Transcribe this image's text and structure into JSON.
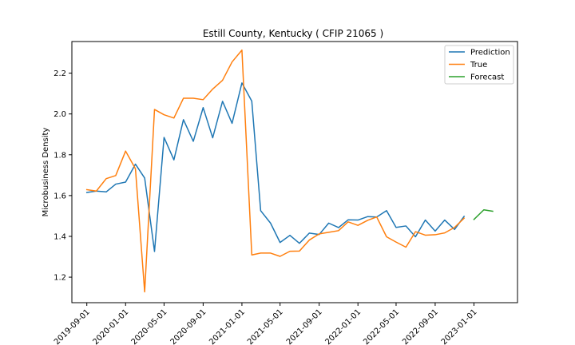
{
  "chart_data": {
    "type": "line",
    "title": "Estill County, Kentucky ( CFIP 21065 )",
    "xlabel": "",
    "ylabel": "Microbusiness Density",
    "xlim": [
      "2019-07-16",
      "2023-05-18"
    ],
    "ylim": [
      1.075,
      2.355
    ],
    "x_ticks": [
      "2019-09-01",
      "2020-01-01",
      "2020-05-01",
      "2020-09-01",
      "2021-01-01",
      "2021-05-01",
      "2021-09-01",
      "2022-01-01",
      "2022-05-01",
      "2022-09-01",
      "2023-01-01"
    ],
    "y_ticks": [
      1.2,
      1.4,
      1.6,
      1.8,
      2.0,
      2.2
    ],
    "grid": false,
    "legend_position": "top-right",
    "series": [
      {
        "name": "Prediction",
        "color": "#1f77b4",
        "points": [
          {
            "x": "2019-09-01",
            "y": 1.615
          },
          {
            "x": "2019-10-01",
            "y": 1.622
          },
          {
            "x": "2019-11-01",
            "y": 1.618
          },
          {
            "x": "2019-12-01",
            "y": 1.656
          },
          {
            "x": "2020-01-01",
            "y": 1.666
          },
          {
            "x": "2020-02-01",
            "y": 1.754
          },
          {
            "x": "2020-03-01",
            "y": 1.686
          },
          {
            "x": "2020-04-01",
            "y": 1.326
          },
          {
            "x": "2020-05-01",
            "y": 1.885
          },
          {
            "x": "2020-06-01",
            "y": 1.775
          },
          {
            "x": "2020-07-01",
            "y": 1.972
          },
          {
            "x": "2020-08-01",
            "y": 1.866
          },
          {
            "x": "2020-09-01",
            "y": 2.031
          },
          {
            "x": "2020-10-01",
            "y": 1.883
          },
          {
            "x": "2020-11-01",
            "y": 2.062
          },
          {
            "x": "2020-12-01",
            "y": 1.954
          },
          {
            "x": "2021-01-01",
            "y": 2.152
          },
          {
            "x": "2021-02-01",
            "y": 2.063
          },
          {
            "x": "2021-03-01",
            "y": 1.526
          },
          {
            "x": "2021-04-01",
            "y": 1.465
          },
          {
            "x": "2021-05-01",
            "y": 1.37
          },
          {
            "x": "2021-06-01",
            "y": 1.405
          },
          {
            "x": "2021-07-01",
            "y": 1.366
          },
          {
            "x": "2021-08-01",
            "y": 1.416
          },
          {
            "x": "2021-09-01",
            "y": 1.409
          },
          {
            "x": "2021-10-01",
            "y": 1.465
          },
          {
            "x": "2021-11-01",
            "y": 1.443
          },
          {
            "x": "2021-12-01",
            "y": 1.481
          },
          {
            "x": "2022-01-01",
            "y": 1.48
          },
          {
            "x": "2022-02-01",
            "y": 1.497
          },
          {
            "x": "2022-03-01",
            "y": 1.495
          },
          {
            "x": "2022-04-01",
            "y": 1.526
          },
          {
            "x": "2022-05-01",
            "y": 1.444
          },
          {
            "x": "2022-06-01",
            "y": 1.451
          },
          {
            "x": "2022-07-01",
            "y": 1.398
          },
          {
            "x": "2022-08-01",
            "y": 1.48
          },
          {
            "x": "2022-09-01",
            "y": 1.426
          },
          {
            "x": "2022-10-01",
            "y": 1.48
          },
          {
            "x": "2022-11-01",
            "y": 1.434
          },
          {
            "x": "2022-12-01",
            "y": 1.498
          }
        ]
      },
      {
        "name": "True",
        "color": "#ff7f0e",
        "points": [
          {
            "x": "2019-09-01",
            "y": 1.629
          },
          {
            "x": "2019-10-01",
            "y": 1.622
          },
          {
            "x": "2019-11-01",
            "y": 1.683
          },
          {
            "x": "2019-12-01",
            "y": 1.698
          },
          {
            "x": "2020-01-01",
            "y": 1.818
          },
          {
            "x": "2020-02-01",
            "y": 1.731
          },
          {
            "x": "2020-03-01",
            "y": 1.128
          },
          {
            "x": "2020-04-01",
            "y": 2.022
          },
          {
            "x": "2020-05-01",
            "y": 1.996
          },
          {
            "x": "2020-06-01",
            "y": 1.98
          },
          {
            "x": "2020-07-01",
            "y": 2.077
          },
          {
            "x": "2020-08-01",
            "y": 2.077
          },
          {
            "x": "2020-09-01",
            "y": 2.07
          },
          {
            "x": "2020-10-01",
            "y": 2.122
          },
          {
            "x": "2020-11-01",
            "y": 2.165
          },
          {
            "x": "2020-12-01",
            "y": 2.255
          },
          {
            "x": "2021-01-01",
            "y": 2.313
          },
          {
            "x": "2021-02-01",
            "y": 1.309
          },
          {
            "x": "2021-03-01",
            "y": 1.318
          },
          {
            "x": "2021-04-01",
            "y": 1.318
          },
          {
            "x": "2021-05-01",
            "y": 1.302
          },
          {
            "x": "2021-06-01",
            "y": 1.327
          },
          {
            "x": "2021-07-01",
            "y": 1.328
          },
          {
            "x": "2021-08-01",
            "y": 1.382
          },
          {
            "x": "2021-09-01",
            "y": 1.412
          },
          {
            "x": "2021-10-01",
            "y": 1.42
          },
          {
            "x": "2021-11-01",
            "y": 1.428
          },
          {
            "x": "2021-12-01",
            "y": 1.471
          },
          {
            "x": "2022-01-01",
            "y": 1.454
          },
          {
            "x": "2022-02-01",
            "y": 1.479
          },
          {
            "x": "2022-03-01",
            "y": 1.495
          },
          {
            "x": "2022-04-01",
            "y": 1.398
          },
          {
            "x": "2022-05-01",
            "y": 1.372
          },
          {
            "x": "2022-06-01",
            "y": 1.347
          },
          {
            "x": "2022-07-01",
            "y": 1.423
          },
          {
            "x": "2022-08-01",
            "y": 1.406
          },
          {
            "x": "2022-09-01",
            "y": 1.408
          },
          {
            "x": "2022-10-01",
            "y": 1.417
          },
          {
            "x": "2022-11-01",
            "y": 1.444
          },
          {
            "x": "2022-12-01",
            "y": 1.489
          }
        ]
      },
      {
        "name": "Forecast",
        "color": "#2ca02c",
        "points": [
          {
            "x": "2023-01-01",
            "y": 1.483
          },
          {
            "x": "2023-02-01",
            "y": 1.53
          },
          {
            "x": "2023-03-01",
            "y": 1.523
          }
        ]
      }
    ]
  }
}
